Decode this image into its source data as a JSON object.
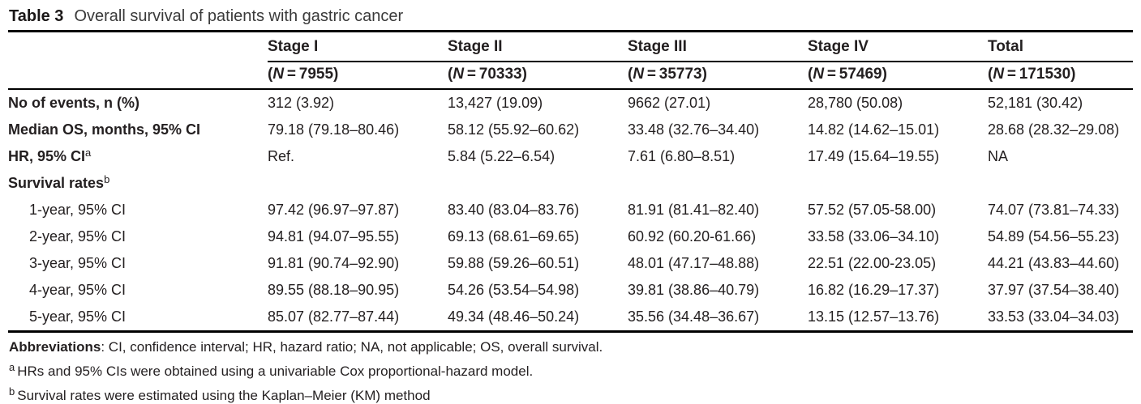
{
  "title": {
    "label": "Table 3",
    "caption": "Overall survival of patients with gastric cancer"
  },
  "table": {
    "header": {
      "stages": [
        "Stage I",
        "Stage II",
        "Stage III",
        "Stage IV",
        "Total"
      ],
      "n_symbol": "N",
      "n_values": [
        "7955",
        "70333",
        "35773",
        "57469",
        "171530"
      ]
    },
    "rows": [
      {
        "label": "No of events, n (%)",
        "sup": "",
        "bold": true,
        "indent": false,
        "cells": [
          "312 (3.92)",
          "13,427 (19.09)",
          "9662 (27.01)",
          "28,780 (50.08)",
          "52,181 (30.42)"
        ]
      },
      {
        "label": "Median OS, months, 95% CI",
        "sup": "",
        "bold": true,
        "indent": false,
        "cells": [
          "79.18 (79.18–80.46)",
          "58.12 (55.92–60.62)",
          "33.48 (32.76–34.40)",
          "14.82 (14.62–15.01)",
          "28.68 (28.32–29.08)"
        ]
      },
      {
        "label": "HR, 95% CI",
        "sup": "a",
        "bold": true,
        "indent": false,
        "cells": [
          "Ref.",
          "5.84 (5.22–6.54)",
          "7.61 (6.80–8.51)",
          "17.49 (15.64–19.55)",
          "NA"
        ]
      },
      {
        "label": "Survival rates",
        "sup": "b",
        "bold": true,
        "indent": false,
        "cells": [
          "",
          "",
          "",
          "",
          ""
        ]
      },
      {
        "label": "1-year, 95% CI",
        "sup": "",
        "bold": false,
        "indent": true,
        "cells": [
          "97.42 (96.97–97.87)",
          "83.40 (83.04–83.76)",
          "81.91 (81.41–82.40)",
          "57.52 (57.05-58.00)",
          "74.07 (73.81–74.33)"
        ]
      },
      {
        "label": "2-year, 95% CI",
        "sup": "",
        "bold": false,
        "indent": true,
        "cells": [
          "94.81 (94.07–95.55)",
          "69.13 (68.61–69.65)",
          "60.92 (60.20-61.66)",
          "33.58 (33.06–34.10)",
          "54.89 (54.56–55.23)"
        ]
      },
      {
        "label": "3-year, 95% CI",
        "sup": "",
        "bold": false,
        "indent": true,
        "cells": [
          "91.81 (90.74–92.90)",
          "59.88 (59.26–60.51)",
          "48.01 (47.17–48.88)",
          "22.51 (22.00-23.05)",
          "44.21 (43.83–44.60)"
        ]
      },
      {
        "label": "4-year, 95% CI",
        "sup": "",
        "bold": false,
        "indent": true,
        "cells": [
          "89.55 (88.18–90.95)",
          "54.26 (53.54–54.98)",
          "39.81 (38.86–40.79)",
          "16.82 (16.29–17.37)",
          "37.97 (37.54–38.40)"
        ]
      },
      {
        "label": "5-year, 95% CI",
        "sup": "",
        "bold": false,
        "indent": true,
        "cells": [
          "85.07 (82.77–87.44)",
          "49.34 (48.46–50.24)",
          "35.56 (34.48–36.67)",
          "13.15 (12.57–13.76)",
          "33.53 (33.04–34.03)"
        ]
      }
    ]
  },
  "footnotes": [
    {
      "prefix": "Abbreviations",
      "sup": "",
      "text": ": CI, confidence interval; HR, hazard ratio; NA, not applicable; OS, overall survival."
    },
    {
      "prefix": "",
      "sup": "a",
      "text": "HRs and 95% CIs were obtained using a univariable Cox proportional-hazard model."
    },
    {
      "prefix": "",
      "sup": "b",
      "text": "Survival rates were estimated using the Kaplan–Meier (KM) method"
    }
  ],
  "colors": {
    "text": "#231f20",
    "rule": "#000000",
    "background": "#ffffff"
  }
}
